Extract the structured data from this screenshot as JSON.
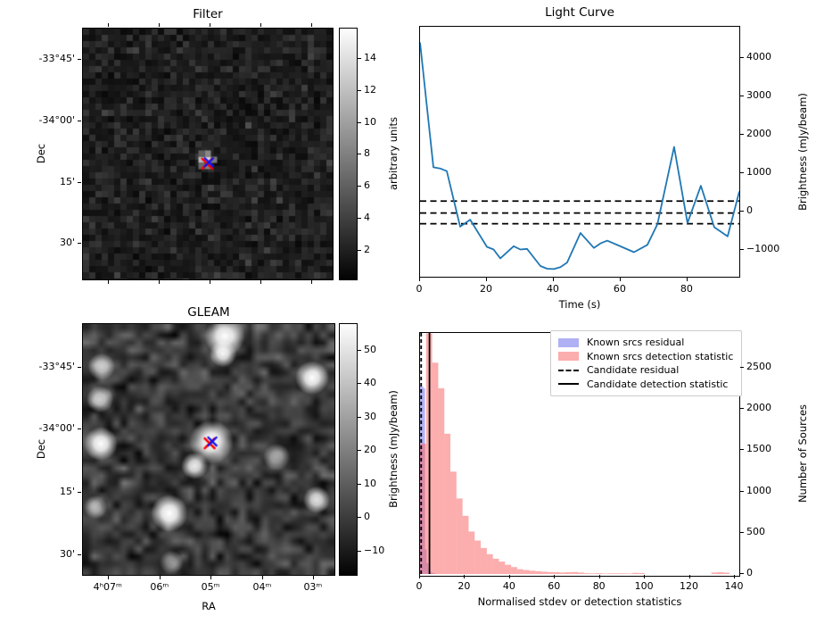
{
  "figure": {
    "background": "#ffffff",
    "line_color": "#1f77b4",
    "marker_red": "#ff0000",
    "marker_blue": "#1212ee"
  },
  "chart_data": [
    {
      "id": "filter",
      "type": "heatmap",
      "title": "Filter",
      "ylabel": "Dec",
      "ytick_labels": [
        "-33°45'",
        "-34°00'",
        "15'",
        "30'"
      ],
      "colorbar": {
        "label": "arbitrary units",
        "ticks": [
          2,
          4,
          6,
          8,
          10,
          12,
          14
        ],
        "range": [
          0.2,
          15.9
        ]
      },
      "center_source": {
        "x": 0.503,
        "y": 0.535
      },
      "markers": [
        {
          "symbol": "x",
          "color": "#ff0000"
        },
        {
          "symbol": "x",
          "color": "#1212ee"
        }
      ]
    },
    {
      "id": "light_curve",
      "type": "line",
      "title": "Light Curve",
      "xlabel": "Time (s)",
      "ylabel": "Brightness (mJy/beam)",
      "xlim": [
        0,
        95.5
      ],
      "ylim": [
        -1700,
        4810
      ],
      "xticks": [
        0,
        20,
        40,
        60,
        80
      ],
      "yticks": [
        -1000,
        0,
        1000,
        2000,
        3000,
        4000
      ],
      "hlines": {
        "style": "dashed",
        "values": [
          270,
          -40,
          -320
        ]
      },
      "x": [
        0,
        4,
        6,
        8,
        12,
        15,
        20,
        22,
        24,
        28,
        30,
        32,
        36,
        38,
        40,
        42,
        44,
        48,
        52,
        54,
        56,
        60,
        64,
        68,
        71,
        76,
        80,
        84,
        88,
        92,
        95.5
      ],
      "y": [
        4400,
        1150,
        1120,
        1050,
        -395,
        -215,
        -920,
        -990,
        -1220,
        -905,
        -990,
        -975,
        -1420,
        -1490,
        -1500,
        -1450,
        -1330,
        -560,
        -950,
        -830,
        -760,
        -910,
        -1060,
        -870,
        -330,
        1680,
        -300,
        670,
        -410,
        -650,
        520
      ]
    },
    {
      "id": "gleam",
      "type": "heatmap",
      "title": "GLEAM",
      "xlabel": "RA",
      "ylabel": "Dec",
      "xtick_labels": [
        "4ʰ07ᵐ",
        "06ᵐ",
        "05ᵐ",
        "04ᵐ",
        "03ᵐ"
      ],
      "ytick_labels": [
        "-33°45'",
        "-34°00'",
        "15'",
        "30'"
      ],
      "colorbar": {
        "label": "Brightness (mJy/beam)",
        "ticks": [
          -10,
          0,
          10,
          20,
          30,
          40,
          50
        ],
        "range": [
          -17,
          58
        ]
      },
      "sources": [
        {
          "x": 0.511,
          "y": 0.47,
          "r": 13,
          "b": 1.0
        },
        {
          "x": 0.564,
          "y": 0.048,
          "r": 12,
          "b": 1.0
        },
        {
          "x": 0.557,
          "y": 0.118,
          "r": 8,
          "b": 0.95
        },
        {
          "x": 0.911,
          "y": 0.214,
          "r": 10,
          "b": 1.0
        },
        {
          "x": 0.074,
          "y": 0.17,
          "r": 8,
          "b": 0.7
        },
        {
          "x": 0.068,
          "y": 0.3,
          "r": 8,
          "b": 0.75
        },
        {
          "x": 0.071,
          "y": 0.477,
          "r": 10,
          "b": 1.0
        },
        {
          "x": 0.444,
          "y": 0.565,
          "r": 8,
          "b": 0.9
        },
        {
          "x": 0.344,
          "y": 0.754,
          "r": 11,
          "b": 1.0
        },
        {
          "x": 0.929,
          "y": 0.7,
          "r": 8,
          "b": 0.85
        },
        {
          "x": 0.05,
          "y": 0.73,
          "r": 7,
          "b": 0.6
        },
        {
          "x": 0.77,
          "y": 0.53,
          "r": 8,
          "b": 0.55
        },
        {
          "x": 0.352,
          "y": 0.95,
          "r": 7,
          "b": 0.5
        }
      ],
      "markers": [
        {
          "symbol": "x",
          "color": "#ff0000"
        },
        {
          "symbol": "x",
          "color": "#1212ee"
        }
      ]
    },
    {
      "id": "histogram",
      "type": "bar",
      "xlabel": "Normalised stdev or detection statistics",
      "ylabel": "Number of Sources",
      "xlim": [
        0,
        142
      ],
      "ylim": [
        0,
        2920
      ],
      "xticks": [
        0,
        20,
        40,
        60,
        80,
        100,
        120,
        140
      ],
      "yticks": [
        0,
        500,
        1000,
        1500,
        2000,
        2500
      ],
      "series": [
        {
          "name": "Known srcs residual",
          "color": "rgba(80,80,230,0.45)",
          "bin_start": 0,
          "bin_width": 0.73,
          "values": [
            2280,
            2270,
            2250,
            300,
            130,
            60,
            30,
            15,
            8,
            5
          ]
        },
        {
          "name": "Known srcs detection statistic",
          "color": "rgba(250,106,106,0.55)",
          "bin_start": 0,
          "bin_width": 2.7,
          "values": [
            1580,
            2915,
            2560,
            2250,
            1700,
            1240,
            915,
            705,
            515,
            405,
            315,
            240,
            185,
            150,
            112,
            84,
            58,
            48,
            40,
            34,
            28,
            24,
            22,
            18,
            22,
            24,
            18,
            10,
            8,
            10,
            6,
            8,
            8,
            8,
            6,
            14,
            12,
            0,
            0,
            0,
            0,
            0,
            0,
            0,
            0,
            0,
            0,
            0,
            18,
            22,
            16,
            0
          ]
        }
      ],
      "vlines": [
        {
          "name": "Candidate residual",
          "style": "dashed",
          "x": 0.5,
          "color": "#000000"
        },
        {
          "name": "Candidate detection statistic",
          "style": "solid",
          "x": 4.2,
          "color": "#000000"
        }
      ],
      "legend": [
        "Known srcs residual",
        "Known srcs detection statistic",
        "Candidate residual",
        "Candidate detection statistic"
      ]
    }
  ]
}
